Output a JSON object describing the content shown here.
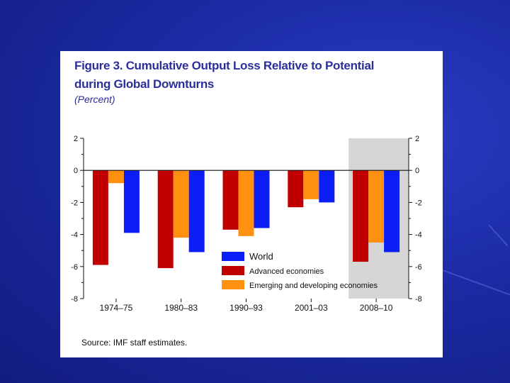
{
  "figure": {
    "title_line1": "Figure 3.  Cumulative Output Loss Relative to Potential",
    "title_line2": "during Global Downturns",
    "subtitle": "(Percent)",
    "source": "Source: IMF staff estimates."
  },
  "colors": {
    "advanced": "#c00000",
    "emerging": "#ff9010",
    "world": "#0a1ef5",
    "highlight": "#d6d6d6"
  },
  "chart_data": {
    "type": "bar",
    "categories": [
      "1974–75",
      "1980–83",
      "1990–93",
      "2001–03",
      "2008–10"
    ],
    "series": [
      {
        "name": "Advanced economies",
        "values": [
          -5.9,
          -6.1,
          -3.7,
          -2.3,
          -5.7
        ]
      },
      {
        "name": "Emerging and developing economies",
        "values": [
          -0.8,
          -4.2,
          -4.1,
          -1.8,
          -4.5
        ]
      },
      {
        "name": "World",
        "values": [
          -3.9,
          -5.1,
          -3.6,
          -2.0,
          -5.1
        ]
      }
    ],
    "legend": [
      "World",
      "Advanced economies",
      "Emerging and developing economies"
    ],
    "ylim": [
      -8,
      2
    ],
    "yticks": [
      2,
      0,
      -2,
      -4,
      -6,
      -8
    ],
    "ytick_labels": [
      "2",
      "0",
      "-2",
      "-4",
      "-6",
      "-8"
    ],
    "highlight_category": "2008–10"
  }
}
